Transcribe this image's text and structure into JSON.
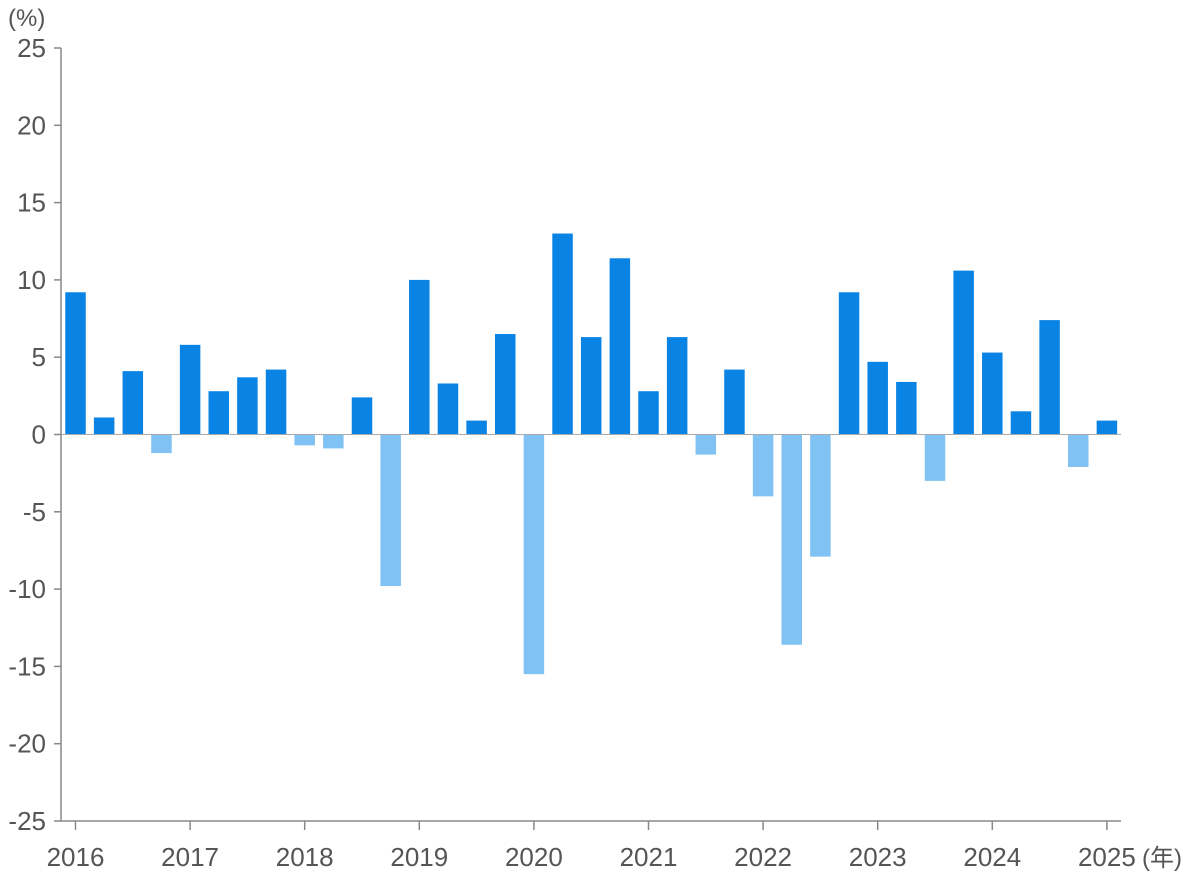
{
  "chart_data": {
    "type": "bar",
    "title": "",
    "y_unit": "(%)",
    "x_unit": "(年)",
    "ylim": [
      -25,
      25
    ],
    "y_ticks": [
      25,
      20,
      15,
      10,
      5,
      0,
      -5,
      -10,
      -15,
      -20,
      -25
    ],
    "x_year_labels": [
      "2016",
      "2017",
      "2018",
      "2019",
      "2020",
      "2021",
      "2022",
      "2023",
      "2024",
      "2025"
    ],
    "quarters_per_year": 4,
    "grid": false,
    "legend": "none",
    "colors": {
      "positive": "#0a84e4",
      "negative": "#80c2f4"
    },
    "values": [
      9.2,
      1.1,
      4.1,
      -1.2,
      5.8,
      2.8,
      3.7,
      4.2,
      -0.7,
      -0.9,
      2.4,
      -9.8,
      10.0,
      3.3,
      0.9,
      6.5,
      -15.5,
      13.0,
      6.3,
      11.4,
      2.8,
      6.3,
      -1.3,
      4.2,
      -4.0,
      -13.6,
      -7.9,
      9.2,
      4.7,
      3.4,
      -3.0,
      10.6,
      5.3,
      1.5,
      7.4,
      -2.1,
      0.9
    ]
  }
}
